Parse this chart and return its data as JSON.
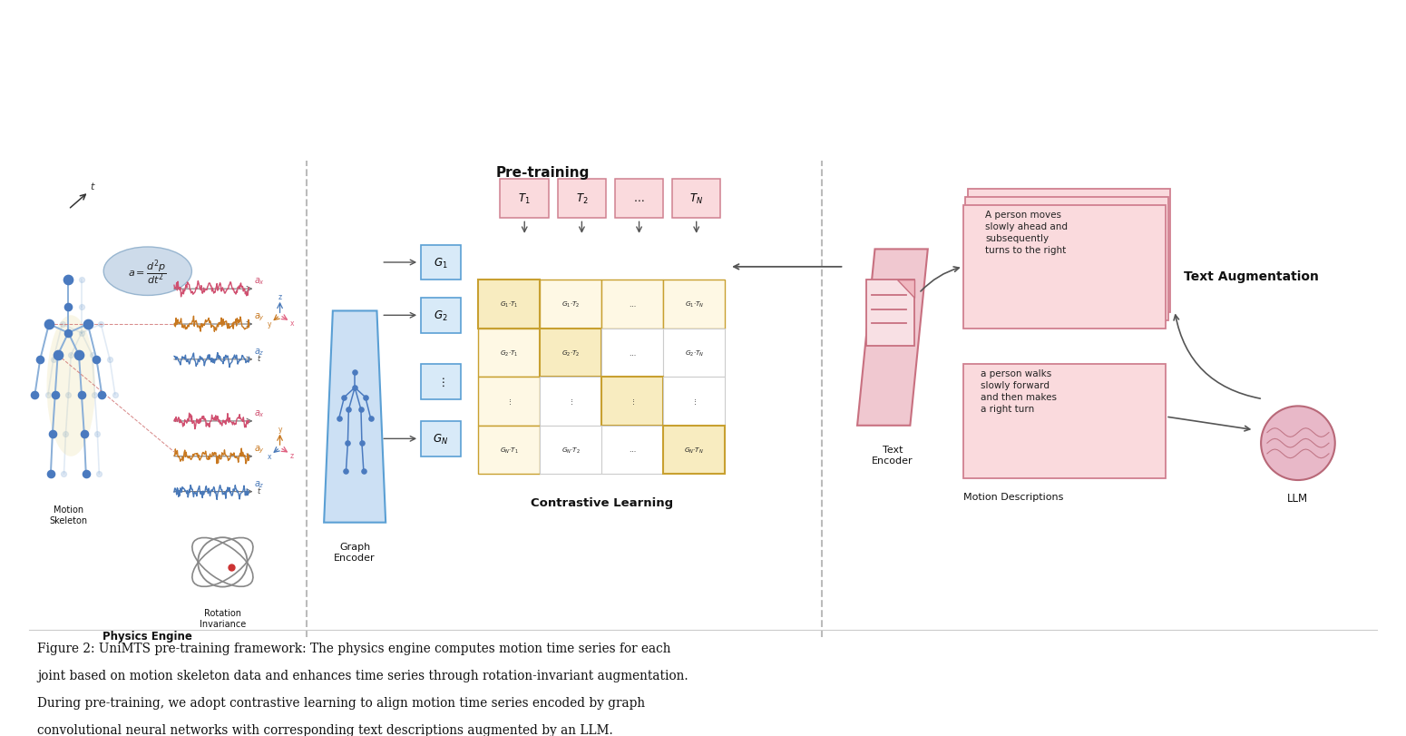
{
  "bg_color": "#ffffff",
  "fig_caption_line1": "Figure 2: UniMTS pre-training framework: The physics engine computes motion time series for each",
  "fig_caption_line2": "joint based on motion skeleton data and enhances time series through rotation-invariant augmentation.",
  "fig_caption_line3": "During pre-training, we adopt contrastive learning to align motion time series encoded by graph",
  "fig_caption_line4": "convolutional neural networks with corresponding text descriptions augmented by an LLM.",
  "colors": {
    "bg_color": "#ffffff",
    "pink": "#e8a0a8",
    "pink_light": "#f5d0d5",
    "pink_box": "#fadadd",
    "pink_border": "#d08090",
    "blue_light": "#a8c8e8",
    "blue_mid": "#5a9fd4",
    "blue_encoder": "#cce0f4",
    "gold": "#d4a840",
    "gold_light": "#f5e8b8",
    "gray_light": "#d0d0d0",
    "gray_mid": "#808080",
    "skeleton_blue": "#4a7abf",
    "skeleton_blue_light": "#8aafd8",
    "signal_pink": "#d05070",
    "signal_orange": "#c87820",
    "signal_blue": "#4878b8",
    "axis_pink": "#e06080",
    "axis_blue": "#4878b8",
    "axis_gold": "#c87820",
    "formula_bg": "#c8d8e8",
    "text_dark": "#111111",
    "text_gray": "#444444",
    "dashed_line": "#aaaaaa",
    "divider": "#bbbbbb",
    "text_encoder_fill": "#f0c8d0",
    "text_encoder_border": "#c87080",
    "doc_fill": "#f8e0e4",
    "matrix_gold_fill": "#f8ecc0",
    "matrix_gold_border": "#c8a030",
    "matrix_white": "#ffffff",
    "matrix_border": "#cccccc",
    "arrow_color": "#555555",
    "brain_fill": "#e8b8c8",
    "brain_border": "#b86878"
  }
}
